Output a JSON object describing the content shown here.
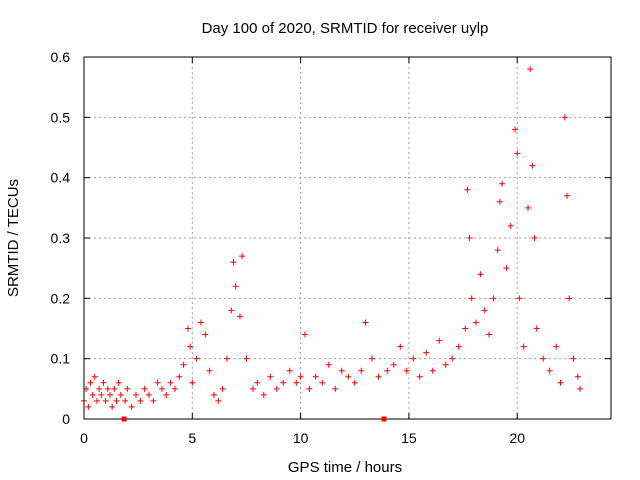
{
  "chart_data": {
    "type": "scatter",
    "title": "Day 100 of 2020, SRMTID for receiver uylp",
    "xlabel": "GPS time / hours",
    "ylabel": "SRMTID / TECUs",
    "xlim": [
      0,
      24.33
    ],
    "ylim": [
      0,
      0.6
    ],
    "x_ticks": [
      0,
      5,
      10,
      15,
      20
    ],
    "x_tick_labels": [
      "0",
      "5",
      "10",
      "15",
      "20"
    ],
    "y_ticks": [
      0,
      0.1,
      0.2,
      0.3,
      0.4,
      0.5,
      0.6
    ],
    "y_tick_labels": [
      "0",
      "0.1",
      "0.2",
      "0.3",
      "0.4",
      "0.5",
      "0.6"
    ],
    "grid": true,
    "marker": "+",
    "color": "#ff0000",
    "gap_markers": [
      1.85,
      13.85
    ],
    "series": [
      {
        "name": "SRMTID",
        "points": [
          [
            0.0,
            0.03
          ],
          [
            0.1,
            0.05
          ],
          [
            0.2,
            0.02
          ],
          [
            0.3,
            0.06
          ],
          [
            0.4,
            0.04
          ],
          [
            0.5,
            0.07
          ],
          [
            0.6,
            0.03
          ],
          [
            0.7,
            0.05
          ],
          [
            0.8,
            0.04
          ],
          [
            0.9,
            0.06
          ],
          [
            1.0,
            0.03
          ],
          [
            1.1,
            0.05
          ],
          [
            1.2,
            0.04
          ],
          [
            1.3,
            0.02
          ],
          [
            1.4,
            0.05
          ],
          [
            1.5,
            0.03
          ],
          [
            1.6,
            0.06
          ],
          [
            1.7,
            0.04
          ],
          [
            1.9,
            0.03
          ],
          [
            2.0,
            0.05
          ],
          [
            2.2,
            0.02
          ],
          [
            2.4,
            0.04
          ],
          [
            2.6,
            0.03
          ],
          [
            2.8,
            0.05
          ],
          [
            3.0,
            0.04
          ],
          [
            3.2,
            0.03
          ],
          [
            3.4,
            0.06
          ],
          [
            3.6,
            0.05
          ],
          [
            3.8,
            0.04
          ],
          [
            4.0,
            0.06
          ],
          [
            4.2,
            0.05
          ],
          [
            4.4,
            0.07
          ],
          [
            4.6,
            0.09
          ],
          [
            4.8,
            0.15
          ],
          [
            4.9,
            0.12
          ],
          [
            5.0,
            0.06
          ],
          [
            5.2,
            0.1
          ],
          [
            5.4,
            0.16
          ],
          [
            5.6,
            0.14
          ],
          [
            5.8,
            0.08
          ],
          [
            6.0,
            0.04
          ],
          [
            6.2,
            0.03
          ],
          [
            6.4,
            0.05
          ],
          [
            6.6,
            0.1
          ],
          [
            6.8,
            0.18
          ],
          [
            6.9,
            0.26
          ],
          [
            7.0,
            0.22
          ],
          [
            7.2,
            0.17
          ],
          [
            7.3,
            0.27
          ],
          [
            7.5,
            0.1
          ],
          [
            7.8,
            0.05
          ],
          [
            8.0,
            0.06
          ],
          [
            8.3,
            0.04
          ],
          [
            8.6,
            0.07
          ],
          [
            8.9,
            0.05
          ],
          [
            9.2,
            0.06
          ],
          [
            9.5,
            0.08
          ],
          [
            9.8,
            0.06
          ],
          [
            10.0,
            0.07
          ],
          [
            10.2,
            0.14
          ],
          [
            10.4,
            0.05
          ],
          [
            10.7,
            0.07
          ],
          [
            11.0,
            0.06
          ],
          [
            11.3,
            0.09
          ],
          [
            11.6,
            0.05
          ],
          [
            11.9,
            0.08
          ],
          [
            12.2,
            0.07
          ],
          [
            12.5,
            0.06
          ],
          [
            12.8,
            0.08
          ],
          [
            13.0,
            0.16
          ],
          [
            13.3,
            0.1
          ],
          [
            13.6,
            0.07
          ],
          [
            14.0,
            0.08
          ],
          [
            14.3,
            0.09
          ],
          [
            14.6,
            0.12
          ],
          [
            14.9,
            0.08
          ],
          [
            15.2,
            0.1
          ],
          [
            15.5,
            0.07
          ],
          [
            15.8,
            0.11
          ],
          [
            16.1,
            0.08
          ],
          [
            16.4,
            0.13
          ],
          [
            16.7,
            0.09
          ],
          [
            17.0,
            0.1
          ],
          [
            17.3,
            0.12
          ],
          [
            17.6,
            0.15
          ],
          [
            17.7,
            0.38
          ],
          [
            17.8,
            0.3
          ],
          [
            17.9,
            0.2
          ],
          [
            18.1,
            0.16
          ],
          [
            18.3,
            0.24
          ],
          [
            18.5,
            0.18
          ],
          [
            18.7,
            0.14
          ],
          [
            18.9,
            0.2
          ],
          [
            19.1,
            0.28
          ],
          [
            19.2,
            0.36
          ],
          [
            19.3,
            0.39
          ],
          [
            19.5,
            0.25
          ],
          [
            19.7,
            0.32
          ],
          [
            19.9,
            0.48
          ],
          [
            20.0,
            0.44
          ],
          [
            20.1,
            0.2
          ],
          [
            20.3,
            0.12
          ],
          [
            20.5,
            0.35
          ],
          [
            20.6,
            0.58
          ],
          [
            20.7,
            0.42
          ],
          [
            20.8,
            0.3
          ],
          [
            20.9,
            0.15
          ],
          [
            21.2,
            0.1
          ],
          [
            21.5,
            0.08
          ],
          [
            21.8,
            0.12
          ],
          [
            22.0,
            0.06
          ],
          [
            22.2,
            0.5
          ],
          [
            22.3,
            0.37
          ],
          [
            22.4,
            0.2
          ],
          [
            22.6,
            0.1
          ],
          [
            22.8,
            0.07
          ],
          [
            22.9,
            0.05
          ]
        ]
      }
    ]
  }
}
